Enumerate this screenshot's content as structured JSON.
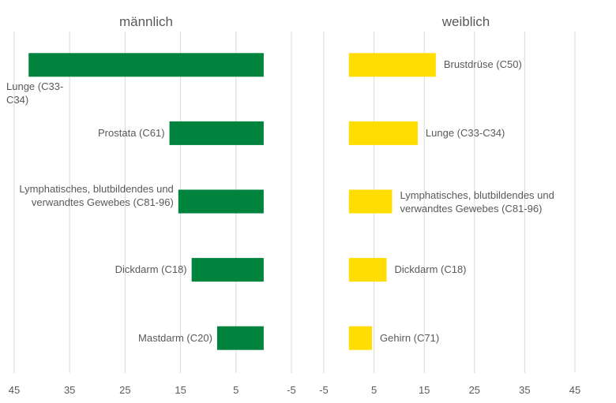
{
  "chart_data": [
    {
      "type": "bar",
      "orientation": "horizontal",
      "title": "männlich",
      "categories": [
        "Lunge (C33-C34)",
        "Prostata (C61)",
        "Lymphatisches, blutbildendes und verwandtes Gewebes (C81-96)",
        "Dickdarm (C18)",
        "Mastdarm (C20)"
      ],
      "values": [
        42.4,
        17,
        15.4,
        13,
        8.4
      ],
      "color": "#00843d",
      "xlim": [
        45,
        -5
      ],
      "xticks": [
        45,
        35,
        25,
        15,
        5,
        -5
      ],
      "grid": true
    },
    {
      "type": "bar",
      "orientation": "horizontal",
      "title": "weiblich",
      "categories": [
        "Brustdrüse (C50)",
        "Lunge (C33-C34)",
        "Lymphatisches, blutbildendes und verwandtes Gewebes (C81-96)",
        "Dickdarm (C18)",
        "Gehirn (C71)"
      ],
      "values": [
        17.3,
        13.7,
        8.6,
        7.5,
        4.6
      ],
      "color": "#ffdd00",
      "xlim": [
        -5,
        45
      ],
      "xticks": [
        -5,
        5,
        15,
        25,
        35,
        45
      ],
      "grid": true
    }
  ]
}
